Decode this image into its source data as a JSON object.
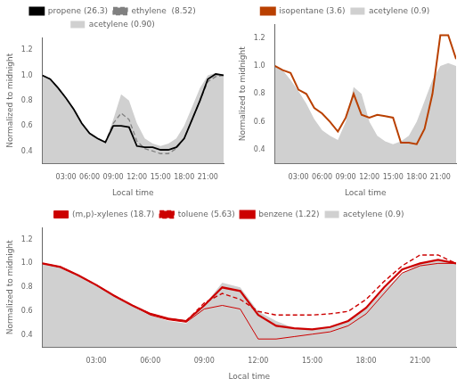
{
  "chart_data": [
    {
      "type": "line",
      "xlabel": "Local time",
      "ylabel": "Normalized to midnight",
      "x": [
        0,
        1,
        2,
        3,
        4,
        5,
        6,
        7,
        8,
        9,
        10,
        11,
        12,
        13,
        14,
        15,
        16,
        17,
        18,
        19,
        20,
        21,
        22,
        23
      ],
      "series": [
        {
          "name": "acetylene (0.90)",
          "type": "area",
          "color": "#d0d0d0",
          "values": [
            1.0,
            0.97,
            0.9,
            0.82,
            0.73,
            0.62,
            0.54,
            0.5,
            0.47,
            0.65,
            0.85,
            0.8,
            0.62,
            0.5,
            0.46,
            0.44,
            0.46,
            0.5,
            0.6,
            0.75,
            0.9,
            1.0,
            1.02,
            1.0
          ]
        },
        {
          "name": "ethylene  (8.52)",
          "color": "#808080",
          "line_style": "dashed",
          "values": [
            1.0,
            0.97,
            0.9,
            0.82,
            0.73,
            0.62,
            0.54,
            0.5,
            0.47,
            0.62,
            0.7,
            0.65,
            0.48,
            0.42,
            0.4,
            0.38,
            0.38,
            0.42,
            0.5,
            0.65,
            0.8,
            0.95,
            0.99,
            1.0
          ]
        },
        {
          "name": "propene (26.3)",
          "color": "#000000",
          "line_style": "solid",
          "values": [
            1.0,
            0.97,
            0.9,
            0.82,
            0.73,
            0.62,
            0.54,
            0.5,
            0.47,
            0.6,
            0.6,
            0.59,
            0.44,
            0.43,
            0.43,
            0.41,
            0.41,
            0.43,
            0.5,
            0.65,
            0.8,
            0.97,
            1.01,
            1.0
          ]
        }
      ],
      "xlim": [
        0,
        23
      ],
      "xticks": [
        {
          "value": 3,
          "label": "03:00"
        },
        {
          "value": 6,
          "label": "06:00"
        },
        {
          "value": 9,
          "label": "09:00"
        },
        {
          "value": 12,
          "label": "12:00"
        },
        {
          "value": 15,
          "label": "15:00"
        },
        {
          "value": 18,
          "label": "18:00"
        },
        {
          "value": 21,
          "label": "21:00"
        }
      ],
      "ylim": [
        0.3,
        1.3
      ],
      "yticks": [
        0.4,
        0.6,
        0.8,
        {
          "value": 1.0,
          "label": "1.0"
        },
        1.2
      ],
      "grid": false,
      "legend": "top"
    },
    {
      "type": "line",
      "xlabel": "Local time",
      "ylabel": "Normalized to midnight",
      "x": [
        0,
        1,
        2,
        3,
        4,
        5,
        6,
        7,
        8,
        9,
        10,
        11,
        12,
        13,
        14,
        15,
        16,
        17,
        18,
        19,
        20,
        21,
        22,
        23
      ],
      "series": [
        {
          "name": "acetylene (0.9)",
          "type": "area",
          "color": "#d0d0d0",
          "values": [
            1.0,
            0.97,
            0.9,
            0.82,
            0.73,
            0.62,
            0.54,
            0.5,
            0.47,
            0.6,
            0.85,
            0.8,
            0.6,
            0.5,
            0.46,
            0.44,
            0.46,
            0.5,
            0.6,
            0.75,
            0.9,
            1.0,
            1.02,
            1.0
          ]
        },
        {
          "name": "isopentane (3.6)",
          "color": "#b94000",
          "line_style": "solid",
          "values": [
            1.0,
            0.97,
            0.95,
            0.83,
            0.8,
            0.7,
            0.66,
            0.6,
            0.53,
            0.63,
            0.8,
            0.65,
            0.63,
            0.65,
            0.64,
            0.63,
            0.45,
            0.45,
            0.44,
            0.55,
            0.8,
            1.22,
            1.22,
            1.05
          ]
        }
      ],
      "xlim": [
        0,
        23
      ],
      "xticks": [
        {
          "value": 3,
          "label": "03:00"
        },
        {
          "value": 6,
          "label": "06:00"
        },
        {
          "value": 9,
          "label": "09:00"
        },
        {
          "value": 12,
          "label": "12:00"
        },
        {
          "value": 15,
          "label": "15:00"
        },
        {
          "value": 18,
          "label": "18:00"
        },
        {
          "value": 21,
          "label": "21:00"
        }
      ],
      "ylim": [
        0.3,
        1.3
      ],
      "yticks": [
        0.4,
        0.6,
        0.8,
        {
          "value": 1.0,
          "label": "1.0"
        },
        1.2
      ],
      "grid": false,
      "legend": "top"
    },
    {
      "type": "line",
      "xlabel": "Local time",
      "ylabel": "Normalized to midnight",
      "x": [
        0,
        1,
        2,
        3,
        4,
        5,
        6,
        7,
        8,
        9,
        10,
        11,
        12,
        13,
        14,
        15,
        16,
        17,
        18,
        19,
        20,
        21,
        22,
        23
      ],
      "series": [
        {
          "name": "acetylene (0.9)",
          "type": "area",
          "color": "#d0d0d0",
          "values": [
            1.0,
            0.97,
            0.9,
            0.82,
            0.73,
            0.65,
            0.57,
            0.52,
            0.5,
            0.65,
            0.84,
            0.8,
            0.6,
            0.52,
            0.46,
            0.45,
            0.47,
            0.52,
            0.62,
            0.78,
            0.92,
            1.0,
            1.02,
            1.0
          ]
        },
        {
          "name": "benzene (1.22)",
          "color": "#cc0000",
          "line_style": "solid",
          "values": [
            1.0,
            0.97,
            0.9,
            0.82,
            0.73,
            0.65,
            0.58,
            0.54,
            0.52,
            0.65,
            0.8,
            0.77,
            0.57,
            0.48,
            0.46,
            0.45,
            0.47,
            0.52,
            0.63,
            0.8,
            0.95,
            1.0,
            1.03,
            1.0
          ]
        },
        {
          "name": "toluene (5.63)",
          "color": "#cc0000",
          "line_style": "dashed",
          "values": [
            1.0,
            0.97,
            0.9,
            0.82,
            0.73,
            0.65,
            0.58,
            0.54,
            0.52,
            0.67,
            0.75,
            0.7,
            0.6,
            0.57,
            0.57,
            0.57,
            0.58,
            0.6,
            0.7,
            0.85,
            0.98,
            1.07,
            1.07,
            1.0
          ]
        },
        {
          "name": "(m,p)-xylenes (18.7)",
          "color": "#cc0000",
          "line_style": "solid",
          "values": [
            1.0,
            0.97,
            0.9,
            0.82,
            0.73,
            0.65,
            0.57,
            0.53,
            0.51,
            0.62,
            0.65,
            0.62,
            0.37,
            0.37,
            0.39,
            0.41,
            0.43,
            0.48,
            0.58,
            0.75,
            0.92,
            0.98,
            1.0,
            1.0
          ]
        }
      ],
      "xlim": [
        0,
        23
      ],
      "xticks": [
        {
          "value": 3,
          "label": "03:00"
        },
        {
          "value": 6,
          "label": "06:00"
        },
        {
          "value": 9,
          "label": "09:00"
        },
        {
          "value": 12,
          "label": "12:00"
        },
        {
          "value": 15,
          "label": "15:00"
        },
        {
          "value": 18,
          "label": "18:00"
        },
        {
          "value": 21,
          "label": "21:00"
        }
      ],
      "ylim": [
        0.3,
        1.3
      ],
      "yticks": [
        0.4,
        0.6,
        0.8,
        {
          "value": 1.0,
          "label": "1.0"
        },
        1.2
      ],
      "grid": false,
      "legend": "top"
    }
  ]
}
